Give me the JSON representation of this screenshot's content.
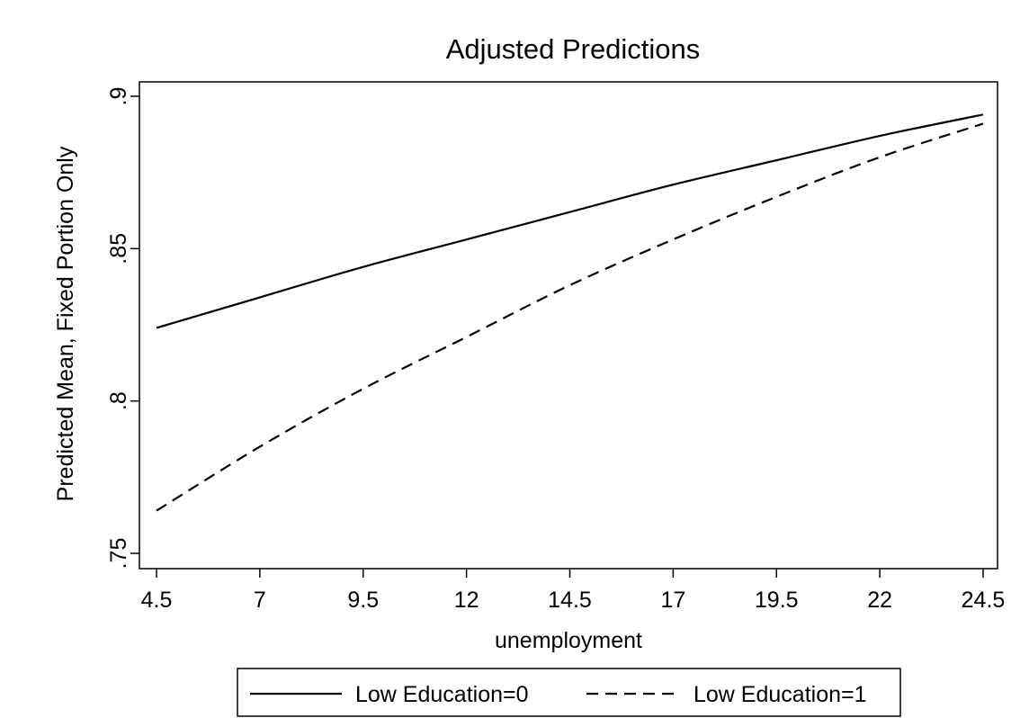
{
  "chart_data": {
    "type": "line",
    "title": "Adjusted Predictions",
    "xlabel": "unemployment",
    "ylabel": "Predicted Mean, Fixed Portion Only",
    "xlim": [
      4.5,
      24.5
    ],
    "ylim": [
      0.75,
      0.9
    ],
    "x_ticks": [
      4.5,
      7,
      9.5,
      12,
      14.5,
      17,
      19.5,
      22,
      24.5
    ],
    "x_tick_labels": [
      "4.5",
      "7",
      "9.5",
      "12",
      "14.5",
      "17",
      "19.5",
      "22",
      "24.5"
    ],
    "y_ticks": [
      0.75,
      0.8,
      0.85,
      0.9
    ],
    "y_tick_labels": [
      ".75",
      ".8",
      ".85",
      ".9"
    ],
    "grid": false,
    "legend_position": "bottom",
    "x": [
      4.5,
      7,
      9.5,
      12,
      14.5,
      17,
      19.5,
      22,
      24.5
    ],
    "series": [
      {
        "name": "Low Education=0",
        "line_style": "solid",
        "color": "#000000",
        "values": [
          0.824,
          0.834,
          0.844,
          0.853,
          0.862,
          0.871,
          0.879,
          0.887,
          0.894
        ]
      },
      {
        "name": "Low Education=1",
        "line_style": "dashed",
        "color": "#000000",
        "values": [
          0.764,
          0.785,
          0.804,
          0.821,
          0.838,
          0.853,
          0.867,
          0.88,
          0.891
        ]
      }
    ]
  }
}
